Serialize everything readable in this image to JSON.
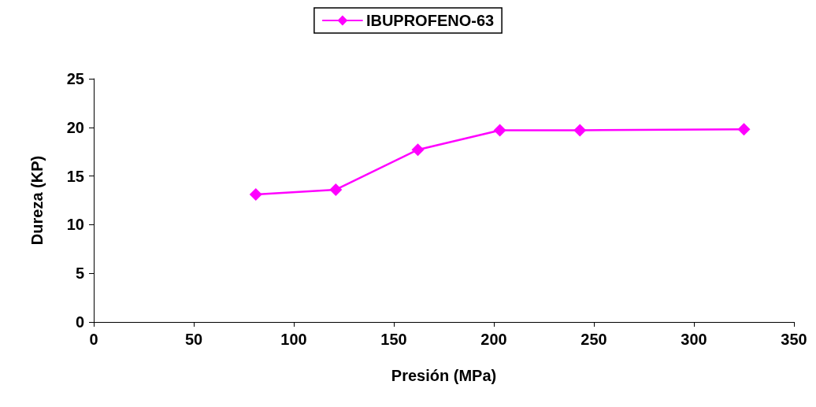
{
  "chart_data": {
    "type": "line",
    "xlabel": "Presión (MPa)",
    "ylabel": "Dureza (KP)",
    "x": [
      81,
      121,
      162,
      203,
      243,
      325
    ],
    "series": [
      {
        "name": "IBUPROFENO-63",
        "color": "#ff00ff",
        "values": [
          13.1,
          13.6,
          17.7,
          19.7,
          19.7,
          19.8
        ]
      }
    ],
    "xlim": [
      0,
      350
    ],
    "xticks": [
      0,
      50,
      100,
      150,
      200,
      250,
      300,
      350
    ],
    "ylim": [
      0,
      25
    ],
    "yticks": [
      0,
      5,
      10,
      15,
      20,
      25
    ],
    "grid": false,
    "legend": "top",
    "marker": "diamond",
    "line_style": "solid"
  }
}
